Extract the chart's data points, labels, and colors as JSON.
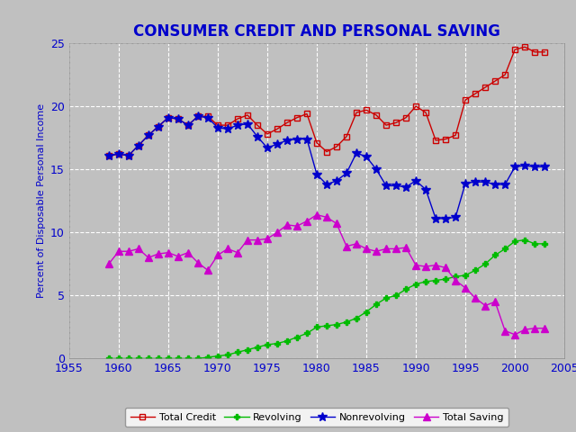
{
  "title": "CONSUMER CREDIT AND PERSONAL SAVING",
  "ylabel": "Percent of Disposable Personal Income",
  "xlim": [
    1955,
    2005
  ],
  "ylim": [
    0,
    25
  ],
  "xticks": [
    1955,
    1960,
    1965,
    1970,
    1975,
    1980,
    1985,
    1990,
    1995,
    2000,
    2005
  ],
  "yticks": [
    0,
    5,
    10,
    15,
    20,
    25
  ],
  "background_color": "#c0c0c0",
  "plot_bg_color": "#c0c0c0",
  "title_color": "#0000cc",
  "ylabel_color": "#0000cc",
  "tick_color": "#0000cc",
  "total_credit": {
    "years": [
      1959,
      1960,
      1961,
      1962,
      1963,
      1964,
      1965,
      1966,
      1967,
      1968,
      1969,
      1970,
      1971,
      1972,
      1973,
      1974,
      1975,
      1976,
      1977,
      1978,
      1979,
      1980,
      1981,
      1982,
      1983,
      1984,
      1985,
      1986,
      1987,
      1988,
      1989,
      1990,
      1991,
      1992,
      1993,
      1994,
      1995,
      1996,
      1997,
      1998,
      1999,
      2000,
      2001,
      2002,
      2003
    ],
    "values": [
      16.1,
      16.2,
      16.1,
      16.9,
      17.7,
      18.4,
      19.1,
      19.0,
      18.5,
      19.2,
      19.2,
      18.5,
      18.5,
      19.0,
      19.3,
      18.5,
      17.8,
      18.2,
      18.7,
      19.1,
      19.4,
      17.1,
      16.4,
      16.8,
      17.6,
      19.5,
      19.7,
      19.3,
      18.5,
      18.7,
      19.1,
      20.0,
      19.5,
      17.3,
      17.4,
      17.7,
      20.5,
      21.0,
      21.5,
      22.0,
      22.5,
      24.5,
      24.7,
      24.3,
      24.3
    ],
    "color": "#cc0000",
    "marker": "s",
    "markersize": 5,
    "label": "Total Credit"
  },
  "revolving": {
    "years": [
      1959,
      1960,
      1961,
      1962,
      1963,
      1964,
      1965,
      1966,
      1967,
      1968,
      1969,
      1970,
      1971,
      1972,
      1973,
      1974,
      1975,
      1976,
      1977,
      1978,
      1979,
      1980,
      1981,
      1982,
      1983,
      1984,
      1985,
      1986,
      1987,
      1988,
      1989,
      1990,
      1991,
      1992,
      1993,
      1994,
      1995,
      1996,
      1997,
      1998,
      1999,
      2000,
      2001,
      2002,
      2003
    ],
    "values": [
      0.0,
      0.0,
      0.0,
      0.0,
      0.0,
      0.0,
      0.0,
      0.0,
      0.0,
      0.0,
      0.1,
      0.2,
      0.3,
      0.5,
      0.7,
      0.9,
      1.1,
      1.2,
      1.4,
      1.7,
      2.0,
      2.5,
      2.6,
      2.7,
      2.9,
      3.2,
      3.7,
      4.3,
      4.8,
      5.0,
      5.5,
      5.9,
      6.1,
      6.2,
      6.3,
      6.5,
      6.6,
      7.0,
      7.5,
      8.2,
      8.7,
      9.3,
      9.4,
      9.1,
      9.1
    ],
    "color": "#00bb00",
    "marker": "P",
    "markersize": 5,
    "label": "Revolving"
  },
  "nonrevolving": {
    "years": [
      1959,
      1960,
      1961,
      1962,
      1963,
      1964,
      1965,
      1966,
      1967,
      1968,
      1969,
      1970,
      1971,
      1972,
      1973,
      1974,
      1975,
      1976,
      1977,
      1978,
      1979,
      1980,
      1981,
      1982,
      1983,
      1984,
      1985,
      1986,
      1987,
      1988,
      1989,
      1990,
      1991,
      1992,
      1993,
      1994,
      1995,
      1996,
      1997,
      1998,
      1999,
      2000,
      2001,
      2002,
      2003
    ],
    "values": [
      16.1,
      16.2,
      16.1,
      16.9,
      17.7,
      18.4,
      19.1,
      19.0,
      18.5,
      19.2,
      19.1,
      18.3,
      18.2,
      18.5,
      18.6,
      17.6,
      16.7,
      17.0,
      17.3,
      17.4,
      17.4,
      14.6,
      13.8,
      14.1,
      14.7,
      16.3,
      16.0,
      15.0,
      13.7,
      13.7,
      13.6,
      14.1,
      13.4,
      11.1,
      11.1,
      11.2,
      13.9,
      14.0,
      14.0,
      13.8,
      13.8,
      15.2,
      15.3,
      15.2,
      15.2
    ],
    "color": "#0000cc",
    "marker": "*",
    "markersize": 7,
    "label": "Nonrevolving"
  },
  "total_saving": {
    "years": [
      1959,
      1960,
      1961,
      1962,
      1963,
      1964,
      1965,
      1966,
      1967,
      1968,
      1969,
      1970,
      1971,
      1972,
      1973,
      1974,
      1975,
      1976,
      1977,
      1978,
      1979,
      1980,
      1981,
      1982,
      1983,
      1984,
      1985,
      1986,
      1987,
      1988,
      1989,
      1990,
      1991,
      1992,
      1993,
      1994,
      1995,
      1996,
      1997,
      1998,
      1999,
      2000,
      2001,
      2002,
      2003
    ],
    "values": [
      7.5,
      8.5,
      8.5,
      8.7,
      8.0,
      8.3,
      8.4,
      8.1,
      8.4,
      7.6,
      7.0,
      8.2,
      8.7,
      8.4,
      9.4,
      9.4,
      9.5,
      10.0,
      10.6,
      10.5,
      10.9,
      11.4,
      11.2,
      10.7,
      8.9,
      9.1,
      8.7,
      8.5,
      8.7,
      8.7,
      8.8,
      7.4,
      7.3,
      7.4,
      7.2,
      6.2,
      5.6,
      4.8,
      4.2,
      4.5,
      2.2,
      1.9,
      2.3,
      2.4,
      2.4
    ],
    "color": "#cc00cc",
    "marker": "^",
    "markersize": 6,
    "label": "Total Saving"
  }
}
